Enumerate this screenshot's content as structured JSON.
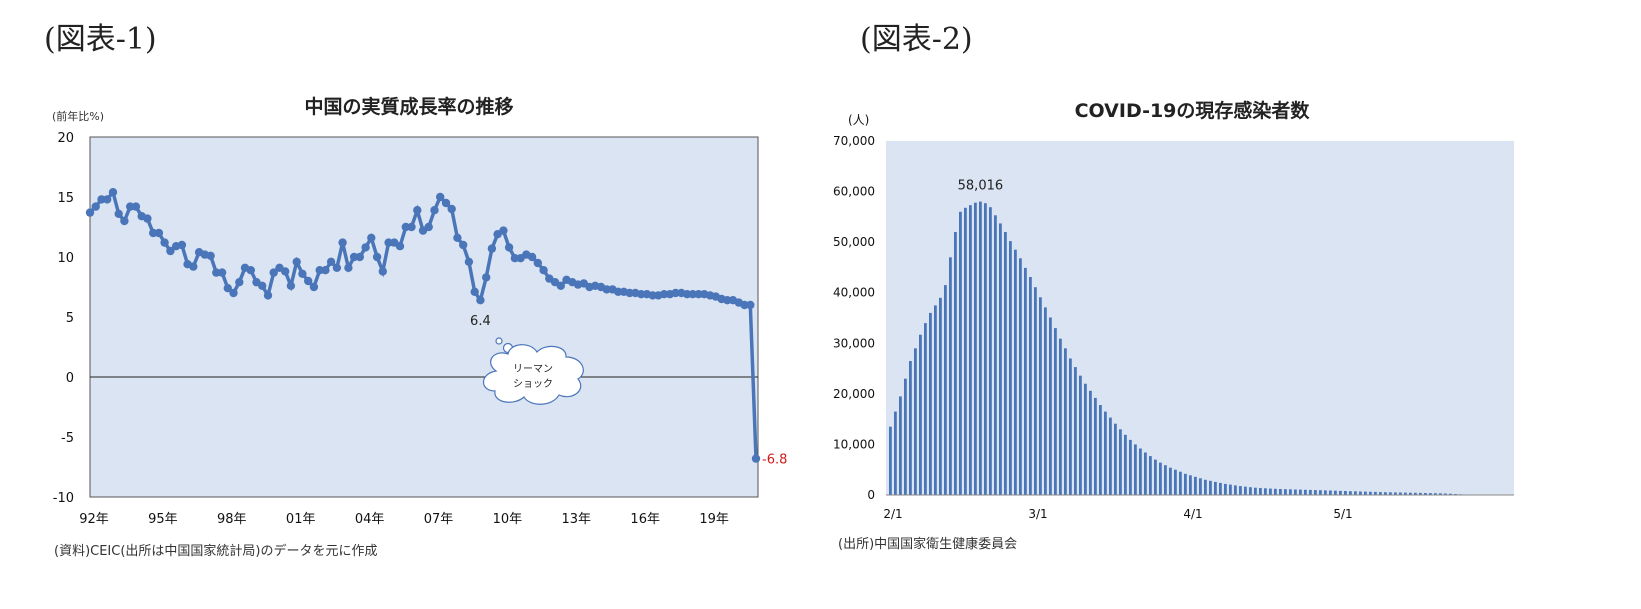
{
  "figure_labels": {
    "left": "(図表-1)",
    "right": "(図表-2)"
  },
  "chart_data": [
    {
      "type": "line",
      "title": "中国の実質成長率の推移",
      "ylabel": "(前年比%)",
      "ylim": [
        -10,
        20
      ],
      "yticks": [
        "20",
        "15",
        "10",
        "5",
        "0",
        "-5",
        "-10"
      ],
      "xtick_labels": [
        "92年",
        "95年",
        "98年",
        "01年",
        "04年",
        "07年",
        "10年",
        "13年",
        "16年",
        "19年"
      ],
      "x_start": "1992Q1",
      "x_end": "2020Q1",
      "series": [
        {
          "values": [
            13.7,
            14.2,
            14.8,
            14.8,
            15.4,
            13.6,
            13.0,
            14.2,
            14.2,
            13.4,
            13.2,
            12.0,
            12.0,
            11.2,
            10.5,
            10.9,
            11.0,
            9.4,
            9.2,
            10.4,
            10.2,
            10.1,
            8.7,
            8.7,
            7.4,
            7.0,
            7.9,
            9.1,
            8.9,
            7.9,
            7.6,
            6.8,
            8.7,
            9.1,
            8.8,
            7.6,
            9.6,
            8.6,
            8.0,
            7.5,
            8.9,
            8.9,
            9.6,
            9.1,
            11.2,
            9.1,
            10.0,
            10.0,
            10.8,
            11.6,
            10.0,
            8.8,
            11.2,
            11.2,
            10.9,
            12.5,
            12.5,
            13.9,
            12.2,
            12.5,
            13.9,
            15.0,
            14.5,
            14.0,
            11.6,
            11.0,
            9.6,
            7.1,
            6.4,
            8.3,
            10.7,
            11.9,
            12.2,
            10.8,
            9.9,
            9.9,
            10.2,
            10.0,
            9.5,
            8.9,
            8.2,
            7.9,
            7.6,
            8.1,
            7.9,
            7.7,
            7.8,
            7.5,
            7.6,
            7.5,
            7.3,
            7.3,
            7.1,
            7.1,
            7.0,
            7.0,
            6.9,
            6.9,
            6.8,
            6.8,
            6.9,
            6.9,
            7.0,
            7.0,
            6.9,
            6.9,
            6.9,
            6.9,
            6.8,
            6.7,
            6.5,
            6.4,
            6.4,
            6.2,
            6.0,
            6.0,
            -6.8
          ]
        }
      ],
      "annotations": [
        {
          "text": "6.4",
          "point": "2009Q1"
        },
        {
          "text": "-6.8",
          "point": "2020Q1",
          "color": "#d01a1a"
        },
        {
          "text": "リーマン ショック",
          "lines": [
            "リーマン",
            "ショック"
          ]
        }
      ],
      "source": "(資料)CEIC(出所は中国国家統計局)のデータを元に作成",
      "colors": {
        "line": "#4a76b9",
        "plot_bg": "#dbe4f2",
        "zero_line": "#222222"
      },
      "grid": false
    },
    {
      "type": "bar",
      "title": "COVID-19の現存感染者数",
      "ylabel": "(人)",
      "ylim": [
        0,
        70000
      ],
      "yticks": [
        "70,000",
        "60,000",
        "50,000",
        "40,000",
        "30,000",
        "20,000",
        "10,000",
        "0"
      ],
      "xtick_labels": [
        "2/1",
        "3/1",
        "4/1",
        "5/1"
      ],
      "x_start": "2/1",
      "x_end": "6/5",
      "series": [
        {
          "values": [
            13500,
            16500,
            19500,
            23000,
            26500,
            29000,
            31700,
            34000,
            36000,
            37500,
            39000,
            41500,
            47000,
            52000,
            56000,
            56800,
            57300,
            57800,
            58016,
            57700,
            56900,
            55300,
            53700,
            52000,
            50200,
            48500,
            46800,
            44900,
            43100,
            41100,
            39100,
            37100,
            35100,
            33000,
            30900,
            29000,
            27000,
            25300,
            23600,
            22000,
            20600,
            19200,
            17800,
            16500,
            15300,
            14100,
            13000,
            11900,
            10900,
            10000,
            9200,
            8400,
            7700,
            7000,
            6400,
            5900,
            5400,
            5000,
            4600,
            4200,
            3900,
            3600,
            3300,
            3000,
            2800,
            2600,
            2400,
            2200,
            2050,
            1900,
            1750,
            1650,
            1550,
            1450,
            1380,
            1320,
            1270,
            1220,
            1180,
            1150,
            1120,
            1090,
            1060,
            1030,
            1000,
            970,
            940,
            910,
            880,
            850,
            820,
            790,
            760,
            730,
            700,
            670,
            640,
            610,
            580,
            560,
            540,
            510,
            490,
            470,
            450,
            430,
            410,
            390,
            370,
            350,
            330,
            300,
            250,
            190,
            130,
            90,
            60,
            40,
            30,
            20,
            15,
            10,
            8,
            6,
            5,
            4
          ]
        }
      ],
      "annotations": [
        {
          "text": "58,016",
          "point": "peak"
        }
      ],
      "source": "(出所)中国国家衛生健康委員会",
      "colors": {
        "bar": "#4a76b9",
        "plot_bg": "#dbe4f2"
      },
      "grid": false
    }
  ]
}
